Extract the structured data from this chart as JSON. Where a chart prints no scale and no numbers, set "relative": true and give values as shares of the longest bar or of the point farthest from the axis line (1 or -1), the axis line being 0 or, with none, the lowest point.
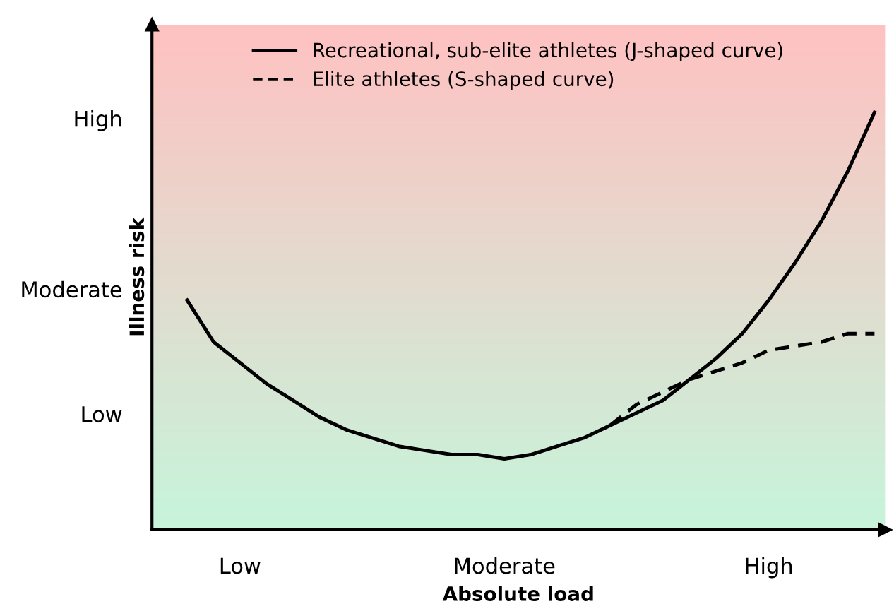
{
  "chart_data": {
    "type": "line",
    "relative": true,
    "xlabel": "Absolute load",
    "ylabel": "Illness risk",
    "categories": [
      null,
      null,
      null,
      "Low",
      null,
      null,
      null,
      null,
      null,
      null,
      null,
      null,
      null,
      "Moderate",
      null,
      null,
      null,
      null,
      null,
      null,
      null,
      null,
      null,
      "High",
      null,
      null,
      null,
      null
    ],
    "annotations": [
      "Low",
      "Moderate",
      "High"
    ],
    "grid": false,
    "legend": "top",
    "series": [
      {
        "name": "Recreational, sub-elite athletes (J-shaped curve)",
        "color": "#000000",
        "line_style": "solid",
        "values": [
          null,
          0.55,
          0.45,
          0.4,
          0.35,
          0.31,
          0.27,
          0.24,
          0.22,
          0.2,
          0.19,
          0.18,
          0.18,
          0.17,
          0.18,
          0.2,
          0.22,
          0.25,
          0.28,
          0.31,
          0.36,
          0.41,
          0.47,
          0.55,
          0.64,
          0.74,
          0.86,
          1
        ]
      },
      {
        "name": "Elite athletes (S-shaped curve)",
        "color": "#000000",
        "line_style": "dashed",
        "values": [
          null,
          null,
          null,
          null,
          null,
          null,
          null,
          null,
          null,
          null,
          null,
          null,
          null,
          null,
          null,
          null,
          null,
          0.25,
          0.3,
          0.33,
          0.36,
          0.38,
          0.4,
          0.43,
          0.44,
          0.45,
          0.47,
          0.47
        ]
      }
    ]
  }
}
